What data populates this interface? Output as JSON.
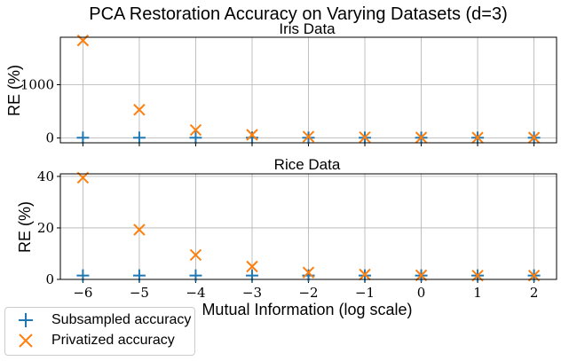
{
  "chart_data": {
    "type": "scatter",
    "suptitle": "PCA Restoration Accuracy on Varying Datasets (d=3)",
    "xlabel": "Mutual Information (log scale)",
    "x": [
      -6,
      -5,
      -4,
      -3,
      -2,
      -1,
      0,
      1,
      2
    ],
    "x_tick_labels": [
      "−6",
      "−5",
      "−4",
      "−3",
      "−2",
      "−1",
      "0",
      "1",
      "2"
    ],
    "xlim": [
      -6.4,
      2.4
    ],
    "grid": true,
    "legend_position": "lower-left",
    "series_meta": [
      {
        "name": "Subsampled accuracy",
        "marker": "plus",
        "color": "#1f77b4"
      },
      {
        "name": "Privatized accuracy",
        "marker": "x",
        "color": "#ff7f0e"
      }
    ],
    "panels": [
      {
        "title": "Iris Data",
        "ylabel": "RE (%)",
        "ylim": [
          -90,
          1890
        ],
        "yticks": [
          0,
          1000
        ],
        "series": [
          {
            "name": "Subsampled accuracy",
            "values": [
              5,
              5,
              5,
              5,
              5,
              5,
              5,
              5,
              5
            ]
          },
          {
            "name": "Privatized accuracy",
            "values": [
              1830,
              530,
              150,
              60,
              25,
              15,
              10,
              8,
              8
            ]
          }
        ]
      },
      {
        "title": "Rice Data",
        "ylabel": "RE (%)",
        "ylim": [
          0,
          41
        ],
        "yticks": [
          0,
          20,
          40
        ],
        "series": [
          {
            "name": "Subsampled accuracy",
            "values": [
              1.5,
              1.5,
              1.5,
              1.5,
              1.5,
              1.5,
              1.5,
              1.5,
              1.5
            ]
          },
          {
            "name": "Privatized accuracy",
            "values": [
              39.5,
              19.3,
              9.5,
              5.0,
              2.7,
              1.9,
              1.6,
              1.5,
              1.5
            ]
          }
        ]
      }
    ]
  }
}
